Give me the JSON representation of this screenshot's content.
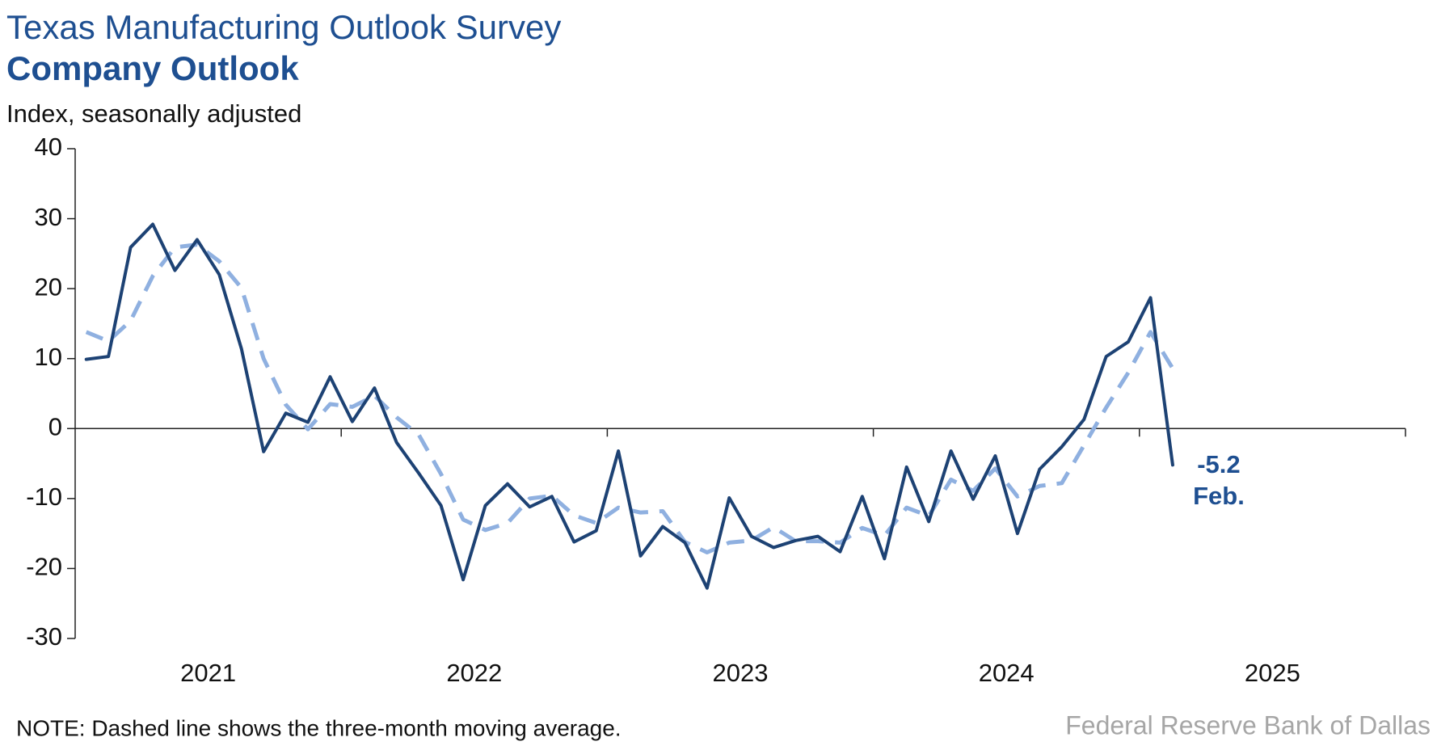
{
  "chart_data": {
    "type": "line",
    "title": "Texas Manufacturing Outlook Survey",
    "subtitle": "Company Outlook",
    "y_label": "Index, seasonally adjusted",
    "note": "NOTE: Dashed line shows the three-month moving average.",
    "source": "Federal Reserve Bank of Dallas",
    "annotation": "Feb.",
    "x": [
      2021.0417,
      2021.125,
      2021.2083,
      2021.2917,
      2021.375,
      2021.4583,
      2021.5417,
      2021.625,
      2021.7083,
      2021.7917,
      2021.875,
      2021.9583,
      2022.0417,
      2022.125,
      2022.2083,
      2022.2917,
      2022.375,
      2022.4583,
      2022.5417,
      2022.625,
      2022.7083,
      2022.7917,
      2022.875,
      2022.9583,
      2023.0417,
      2023.125,
      2023.2083,
      2023.2917,
      2023.375,
      2023.4583,
      2023.5417,
      2023.625,
      2023.7083,
      2023.7917,
      2023.875,
      2023.9583,
      2024.0417,
      2024.125,
      2024.2083,
      2024.2917,
      2024.375,
      2024.4583,
      2024.5417,
      2024.625,
      2024.7083,
      2024.7917,
      2024.875,
      2024.9583,
      2025.0417,
      2025.125
    ],
    "series": [
      {
        "name": "Company outlook",
        "color": "#1d4274",
        "dashed": false,
        "values": [
          9.9,
          10.3,
          25.9,
          29.2,
          22.6,
          27.0,
          22.0,
          11.4,
          -3.3,
          2.2,
          0.9,
          7.4,
          1.0,
          5.8,
          -2.0,
          -6.4,
          -11.0,
          -21.6,
          -11.0,
          -7.9,
          -11.2,
          -9.7,
          -16.2,
          -14.6,
          -3.2,
          -18.2,
          -14.0,
          -16.3,
          -22.8,
          -9.9,
          -15.4,
          -17.0,
          -16.0,
          -15.4,
          -17.6,
          -9.7,
          -18.6,
          -5.5,
          -13.3,
          -3.2,
          -10.1,
          -3.9,
          -15.0,
          -5.8,
          -2.6,
          1.3,
          10.3,
          12.4,
          18.7,
          -5.2
        ]
      },
      {
        "name": "Three-month moving average",
        "color": "#8fb0e0",
        "dashed": true,
        "values": [
          13.8,
          12.5,
          15.4,
          21.8,
          25.9,
          26.3,
          23.9,
          20.1,
          10.0,
          3.4,
          -0.1,
          3.5,
          3.1,
          4.7,
          1.6,
          -0.9,
          -6.5,
          -13.0,
          -14.5,
          -13.5,
          -10.0,
          -9.6,
          -12.4,
          -13.5,
          -11.3,
          -12.0,
          -11.8,
          -16.2,
          -17.7,
          -16.3,
          -16.0,
          -14.1,
          -16.1,
          -16.1,
          -16.3,
          -14.2,
          -15.3,
          -11.3,
          -12.5,
          -7.3,
          -8.9,
          -5.7,
          -9.7,
          -8.2,
          -7.8,
          -2.4,
          3.0,
          8.0,
          13.8,
          8.6
        ]
      }
    ],
    "xlim": [
      2021,
      2026
    ],
    "xticks": [
      {
        "value": 2021.5,
        "label": "2021"
      },
      {
        "value": 2022.5,
        "label": "2022"
      },
      {
        "value": 2023.5,
        "label": "2023"
      },
      {
        "value": 2024.5,
        "label": "2024"
      },
      {
        "value": 2025.5,
        "label": "2025"
      }
    ],
    "xtick_marks": [
      2022,
      2023,
      2024,
      2025,
      2026
    ],
    "ylim": [
      -30,
      40
    ],
    "yticks": [
      -30,
      -20,
      -10,
      0,
      10,
      20,
      30,
      40
    ],
    "zero_line": true,
    "grid": false,
    "legend": false
  }
}
